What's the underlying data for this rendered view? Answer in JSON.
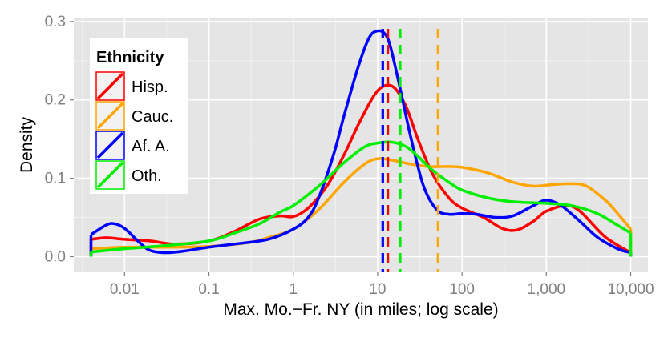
{
  "chart_data": {
    "type": "area",
    "xlabel": "Max. Mo.−Fr. NY (in miles; log scale)",
    "ylabel": "Density",
    "xscale": "log10",
    "xlim": [
      0.0025,
      16000
    ],
    "ylim": [
      -0.02,
      0.305
    ],
    "grid": true,
    "background": "#e5e5e5",
    "x_ticks": [
      {
        "value": 0.01,
        "label": "0.01"
      },
      {
        "value": 0.1,
        "label": "0.1"
      },
      {
        "value": 1,
        "label": "1"
      },
      {
        "value": 10,
        "label": "10"
      },
      {
        "value": 100,
        "label": "100"
      },
      {
        "value": 1000,
        "label": "1,000"
      },
      {
        "value": 10000,
        "label": "10,000"
      }
    ],
    "y_ticks": [
      {
        "value": 0.0,
        "label": "0.0"
      },
      {
        "value": 0.1,
        "label": "0.1"
      },
      {
        "value": 0.2,
        "label": "0.2"
      },
      {
        "value": 0.3,
        "label": "0.3"
      }
    ],
    "legend": {
      "title": "Ethnicity",
      "position": "top-left"
    },
    "series": [
      {
        "name": "Hisp.",
        "color": "#ff0000",
        "mean": 13.2,
        "points": [
          [
            0.004,
            0.022
          ],
          [
            0.006,
            0.024
          ],
          [
            0.01,
            0.022
          ],
          [
            0.02,
            0.02
          ],
          [
            0.04,
            0.016
          ],
          [
            0.1,
            0.02
          ],
          [
            0.2,
            0.032
          ],
          [
            0.4,
            0.048
          ],
          [
            0.7,
            0.052
          ],
          [
            1.0,
            0.051
          ],
          [
            1.5,
            0.062
          ],
          [
            2.5,
            0.09
          ],
          [
            4,
            0.13
          ],
          [
            6,
            0.17
          ],
          [
            9,
            0.205
          ],
          [
            12,
            0.218
          ],
          [
            16,
            0.215
          ],
          [
            22,
            0.19
          ],
          [
            30,
            0.15
          ],
          [
            45,
            0.105
          ],
          [
            70,
            0.075
          ],
          [
            100,
            0.062
          ],
          [
            180,
            0.05
          ],
          [
            300,
            0.036
          ],
          [
            450,
            0.034
          ],
          [
            700,
            0.045
          ],
          [
            1000,
            0.058
          ],
          [
            1700,
            0.065
          ],
          [
            2500,
            0.058
          ],
          [
            5000,
            0.025
          ],
          [
            10000,
            0.005
          ]
        ]
      },
      {
        "name": "Cauc.",
        "color": "#ffa500",
        "mean": 52,
        "points": [
          [
            0.004,
            0.01
          ],
          [
            0.01,
            0.012
          ],
          [
            0.03,
            0.012
          ],
          [
            0.1,
            0.013
          ],
          [
            0.3,
            0.018
          ],
          [
            0.5,
            0.024
          ],
          [
            1.0,
            0.035
          ],
          [
            2,
            0.06
          ],
          [
            4,
            0.095
          ],
          [
            7,
            0.118
          ],
          [
            10,
            0.125
          ],
          [
            15,
            0.123
          ],
          [
            25,
            0.118
          ],
          [
            40,
            0.115
          ],
          [
            70,
            0.115
          ],
          [
            100,
            0.114
          ],
          [
            200,
            0.107
          ],
          [
            400,
            0.095
          ],
          [
            700,
            0.09
          ],
          [
            1200,
            0.092
          ],
          [
            2000,
            0.093
          ],
          [
            3000,
            0.09
          ],
          [
            5000,
            0.072
          ],
          [
            7000,
            0.055
          ],
          [
            10000,
            0.035
          ]
        ]
      },
      {
        "name": "Af. A.",
        "color": "#0000ff",
        "mean": 11.5,
        "points": [
          [
            0.004,
            0.028
          ],
          [
            0.006,
            0.04
          ],
          [
            0.0075,
            0.042
          ],
          [
            0.01,
            0.036
          ],
          [
            0.015,
            0.018
          ],
          [
            0.02,
            0.008
          ],
          [
            0.03,
            0.005
          ],
          [
            0.05,
            0.007
          ],
          [
            0.1,
            0.012
          ],
          [
            0.2,
            0.016
          ],
          [
            0.5,
            0.022
          ],
          [
            1.0,
            0.035
          ],
          [
            1.5,
            0.05
          ],
          [
            2,
            0.075
          ],
          [
            3,
            0.13
          ],
          [
            4,
            0.18
          ],
          [
            6,
            0.245
          ],
          [
            8,
            0.28
          ],
          [
            10,
            0.288
          ],
          [
            12,
            0.285
          ],
          [
            14,
            0.27
          ],
          [
            18,
            0.22
          ],
          [
            25,
            0.15
          ],
          [
            35,
            0.09
          ],
          [
            50,
            0.06
          ],
          [
            70,
            0.054
          ],
          [
            100,
            0.055
          ],
          [
            150,
            0.054
          ],
          [
            250,
            0.05
          ],
          [
            400,
            0.052
          ],
          [
            700,
            0.065
          ],
          [
            1000,
            0.072
          ],
          [
            1500,
            0.065
          ],
          [
            2500,
            0.045
          ],
          [
            4000,
            0.025
          ],
          [
            7000,
            0.01
          ],
          [
            10000,
            0.005
          ]
        ]
      },
      {
        "name": "Oth.",
        "color": "#00ee00",
        "mean": 18.5,
        "points": [
          [
            0.004,
            0.006
          ],
          [
            0.01,
            0.01
          ],
          [
            0.03,
            0.014
          ],
          [
            0.1,
            0.02
          ],
          [
            0.2,
            0.03
          ],
          [
            0.4,
            0.042
          ],
          [
            0.7,
            0.057
          ],
          [
            1.0,
            0.065
          ],
          [
            2,
            0.09
          ],
          [
            4,
            0.12
          ],
          [
            7,
            0.14
          ],
          [
            10,
            0.145
          ],
          [
            15,
            0.146
          ],
          [
            22,
            0.14
          ],
          [
            30,
            0.128
          ],
          [
            45,
            0.11
          ],
          [
            70,
            0.095
          ],
          [
            100,
            0.085
          ],
          [
            200,
            0.075
          ],
          [
            400,
            0.07
          ],
          [
            1000,
            0.068
          ],
          [
            2000,
            0.065
          ],
          [
            4000,
            0.055
          ],
          [
            7000,
            0.04
          ],
          [
            10000,
            0.03
          ]
        ]
      }
    ]
  }
}
